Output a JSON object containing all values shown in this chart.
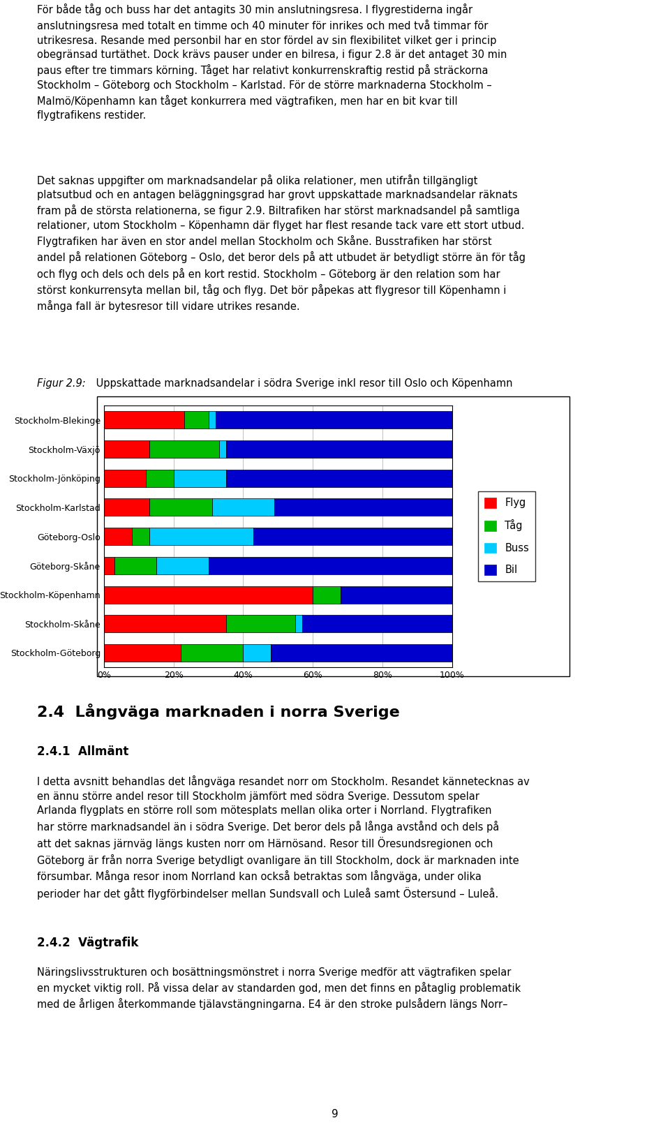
{
  "categories": [
    "Stockholm-Blekinge",
    "Stockholm-Växjö",
    "Stockholm-Jönköping",
    "Stockholm-Karlstad",
    "Göteborg-Oslo",
    "Göteborg-Skåne",
    "Stockholm-Köpenhamn",
    "Stockholm-Skåne",
    "Stockholm-Göteborg"
  ],
  "series": {
    "Flyg": [
      23,
      13,
      12,
      13,
      8,
      3,
      60,
      35,
      22
    ],
    "Tåg": [
      7,
      20,
      8,
      18,
      5,
      12,
      8,
      20,
      18
    ],
    "Buss": [
      2,
      2,
      15,
      18,
      30,
      15,
      0,
      2,
      8
    ],
    "Bil": [
      68,
      65,
      65,
      51,
      57,
      70,
      32,
      43,
      52
    ]
  },
  "colors": {
    "Flyg": "#ff0000",
    "Tåg": "#00bb00",
    "Buss": "#00ccff",
    "Bil": "#0000cc"
  },
  "background_color": "#ffffff",
  "chart_bg": "#ffffff",
  "bar_height": 0.6,
  "xlim": [
    0,
    100
  ],
  "xticks": [
    0,
    20,
    40,
    60,
    80,
    100
  ],
  "xticklabels": [
    "0%",
    "20%",
    "40%",
    "60%",
    "80%",
    "100%"
  ],
  "page_number": "9"
}
